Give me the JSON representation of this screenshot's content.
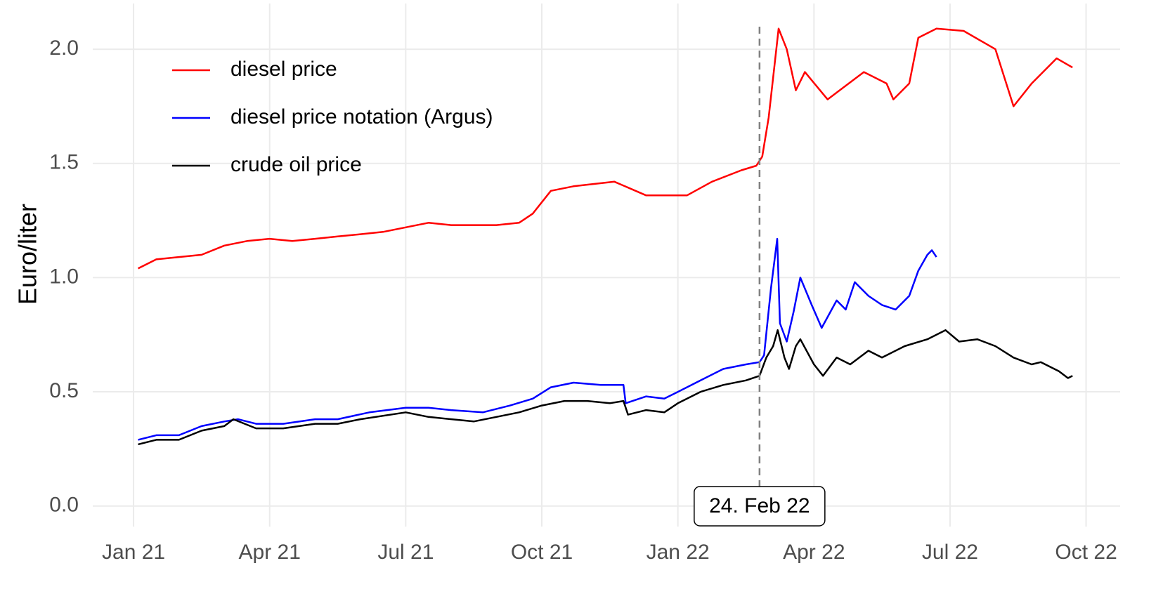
{
  "chart_data": {
    "type": "line",
    "y_label": "Euro/liter",
    "xlim": [
      -0.9,
      21.75
    ],
    "xticks": [
      {
        "value": 0,
        "label": "Jan 21"
      },
      {
        "value": 3,
        "label": "Apr 21"
      },
      {
        "value": 6,
        "label": "Jul 21"
      },
      {
        "value": 9,
        "label": "Oct 21"
      },
      {
        "value": 12,
        "label": "Jan 22"
      },
      {
        "value": 15,
        "label": "Apr 22"
      },
      {
        "value": 18,
        "label": "Jul 22"
      },
      {
        "value": 21,
        "label": "Oct 22"
      }
    ],
    "ylim": [
      -0.09,
      2.2
    ],
    "yticks": [
      {
        "value": 0,
        "label": "0.0"
      },
      {
        "value": 0.5,
        "label": "0.5"
      },
      {
        "value": 1,
        "label": "1.0"
      },
      {
        "value": 1.5,
        "label": "1.5"
      },
      {
        "value": 2,
        "label": "2.0"
      }
    ],
    "grid": true,
    "legend": "top-left",
    "annotation": {
      "text": "24. Feb 22",
      "x": 13.8
    },
    "series": [
      {
        "name": "diesel price",
        "color": "#ff0000",
        "x": [
          0.1,
          0.5,
          1,
          1.5,
          2,
          2.5,
          3,
          3.5,
          4,
          4.5,
          5,
          5.5,
          6,
          6.5,
          7,
          7.5,
          8,
          8.5,
          8.8,
          9.2,
          9.7,
          10.6,
          11.3,
          12.2,
          12.75,
          13.4,
          13.73,
          13.86,
          14.0,
          14.22,
          14.4,
          14.6,
          14.8,
          15.3,
          16.1,
          16.6,
          16.75,
          17.1,
          17.3,
          17.7,
          18.3,
          19.0,
          19.4,
          19.8,
          20.35,
          20.7
        ],
        "values": [
          1.04,
          1.08,
          1.09,
          1.1,
          1.14,
          1.16,
          1.17,
          1.16,
          1.17,
          1.18,
          1.19,
          1.2,
          1.22,
          1.24,
          1.23,
          1.23,
          1.23,
          1.24,
          1.28,
          1.38,
          1.4,
          1.42,
          1.36,
          1.36,
          1.42,
          1.47,
          1.49,
          1.53,
          1.7,
          2.09,
          2.0,
          1.82,
          1.9,
          1.78,
          1.9,
          1.85,
          1.78,
          1.85,
          2.05,
          2.09,
          2.08,
          2.0,
          1.75,
          1.85,
          1.96,
          1.92
        ]
      },
      {
        "name": "diesel price notation (Argus)",
        "color": "#0000ff",
        "x": [
          0.1,
          0.5,
          1,
          1.5,
          2,
          2.3,
          2.7,
          3.3,
          4,
          4.5,
          5.2,
          6,
          6.5,
          7,
          7.7,
          8.3,
          8.8,
          9.2,
          9.7,
          10.3,
          10.8,
          10.85,
          11.3,
          11.7,
          12,
          12.5,
          13,
          13.5,
          13.8,
          13.9,
          14.05,
          14.19,
          14.25,
          14.4,
          14.55,
          14.7,
          14.95,
          15.17,
          15.5,
          15.7,
          15.9,
          16.2,
          16.5,
          16.8,
          17.1,
          17.3,
          17.5,
          17.6,
          17.7
        ],
        "values": [
          0.29,
          0.31,
          0.31,
          0.35,
          0.37,
          0.38,
          0.36,
          0.36,
          0.38,
          0.38,
          0.41,
          0.43,
          0.43,
          0.42,
          0.41,
          0.44,
          0.47,
          0.52,
          0.54,
          0.53,
          0.53,
          0.45,
          0.48,
          0.47,
          0.5,
          0.55,
          0.6,
          0.62,
          0.63,
          0.66,
          0.95,
          1.17,
          0.8,
          0.72,
          0.85,
          1.0,
          0.88,
          0.78,
          0.9,
          0.86,
          0.98,
          0.92,
          0.88,
          0.86,
          0.92,
          1.03,
          1.1,
          1.12,
          1.09
        ]
      },
      {
        "name": "crude oil price",
        "color": "#000000",
        "x": [
          0.1,
          0.5,
          1,
          1.5,
          2,
          2.2,
          2.7,
          3.3,
          4,
          4.5,
          5,
          6,
          6.5,
          7.5,
          8,
          8.5,
          9,
          9.5,
          10,
          10.5,
          10.8,
          10.9,
          11.3,
          11.7,
          12,
          12.5,
          13,
          13.5,
          13.8,
          13.95,
          14.1,
          14.2,
          14.35,
          14.45,
          14.6,
          14.7,
          15.0,
          15.2,
          15.5,
          15.8,
          16.2,
          16.5,
          17,
          17.5,
          17.9,
          18.2,
          18.6,
          19.0,
          19.4,
          19.8,
          20.0,
          20.4,
          20.6,
          20.7
        ],
        "values": [
          0.27,
          0.29,
          0.29,
          0.33,
          0.35,
          0.38,
          0.34,
          0.34,
          0.36,
          0.36,
          0.38,
          0.41,
          0.39,
          0.37,
          0.39,
          0.41,
          0.44,
          0.46,
          0.46,
          0.45,
          0.46,
          0.4,
          0.42,
          0.41,
          0.45,
          0.5,
          0.53,
          0.55,
          0.57,
          0.65,
          0.7,
          0.77,
          0.65,
          0.6,
          0.7,
          0.73,
          0.62,
          0.57,
          0.65,
          0.62,
          0.68,
          0.65,
          0.7,
          0.73,
          0.77,
          0.72,
          0.73,
          0.7,
          0.65,
          0.62,
          0.63,
          0.59,
          0.56,
          0.57
        ]
      }
    ]
  }
}
